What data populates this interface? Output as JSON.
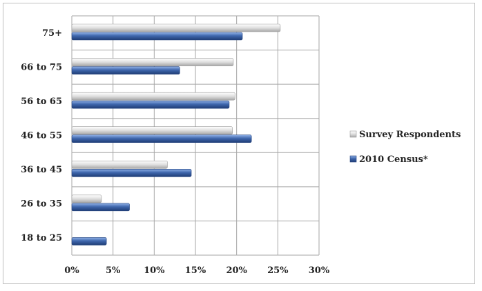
{
  "chart_data": {
    "type": "bar",
    "orientation": "horizontal",
    "categories": [
      "75+",
      "66 to 75",
      "56 to 65",
      "46 to 55",
      "36 to 45",
      "26 to 35",
      "18 to 25"
    ],
    "series": [
      {
        "name": "Survey Respondents",
        "values": [
          25.3,
          19.6,
          19.8,
          19.5,
          11.6,
          3.6,
          0.0
        ],
        "color": "#d9d9d9"
      },
      {
        "name": "2010 Census*",
        "values": [
          20.7,
          13.1,
          19.1,
          21.8,
          14.5,
          7.0,
          4.2
        ],
        "color": "#3f67ad"
      }
    ],
    "xlim": [
      0,
      30
    ],
    "x_ticks": [
      "0%",
      "5%",
      "10%",
      "15%",
      "20%",
      "25%",
      "30%"
    ],
    "x_tick_values": [
      0,
      5,
      10,
      15,
      20,
      25,
      30
    ],
    "grid": true,
    "legend_position": "right",
    "title": "",
    "xlabel": "",
    "ylabel": ""
  }
}
